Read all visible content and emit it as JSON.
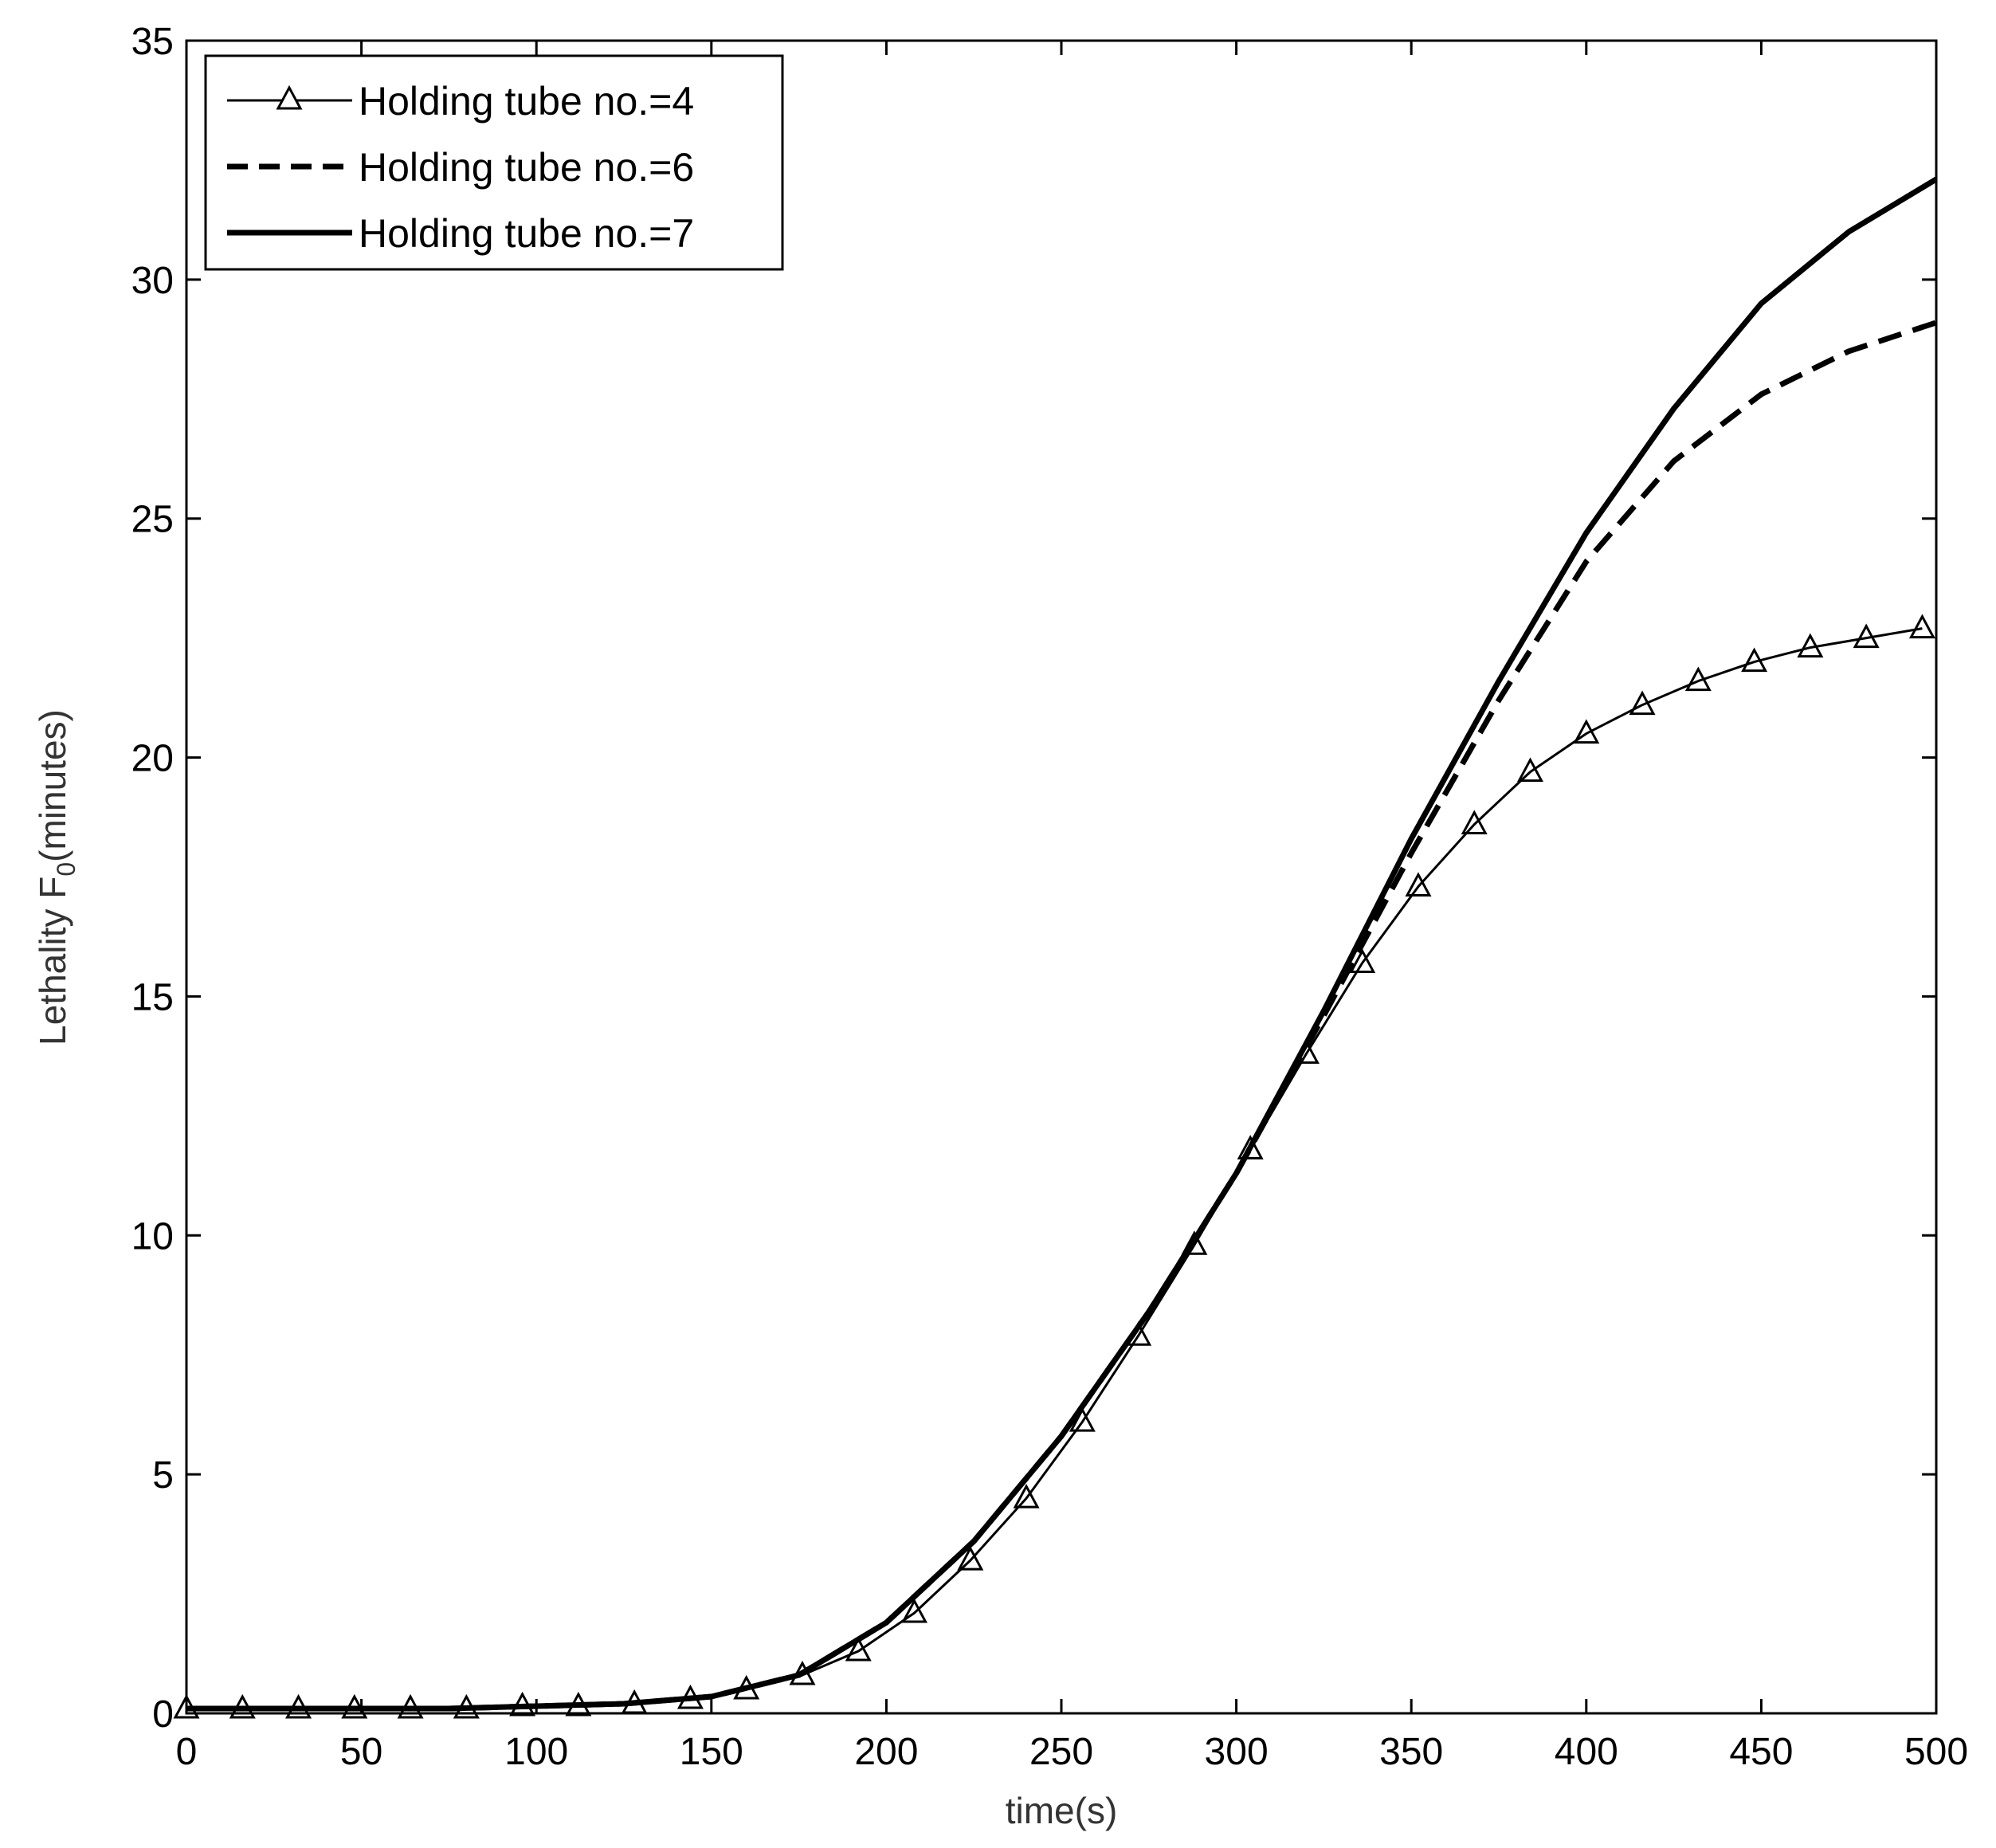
{
  "chart_data": {
    "type": "line",
    "title": "",
    "xlabel": "time(s)",
    "ylabel": {
      "main": "Lethality F",
      "subscript": "0",
      "suffix": "(minutes)"
    },
    "xlim": [
      0,
      500
    ],
    "ylim": [
      0,
      35
    ],
    "xticks": [
      0,
      50,
      100,
      150,
      200,
      250,
      300,
      350,
      400,
      450,
      500
    ],
    "yticks": [
      0,
      5,
      10,
      15,
      20,
      25,
      30,
      35
    ],
    "grid": false,
    "legend_position": "top-left",
    "series": [
      {
        "name": "Holding tube no.=4",
        "style": "solid-thin-triangle",
        "color": "#000000",
        "x": [
          0,
          16,
          32,
          48,
          64,
          80,
          96,
          112,
          128,
          144,
          160,
          176,
          192,
          208,
          224,
          240,
          256,
          272,
          288,
          304,
          320,
          336,
          352,
          368,
          384,
          400,
          416,
          432,
          448,
          464,
          480,
          496
        ],
        "y": [
          0.1,
          0.1,
          0.1,
          0.1,
          0.1,
          0.1,
          0.15,
          0.15,
          0.2,
          0.3,
          0.5,
          0.8,
          1.3,
          2.1,
          3.2,
          4.5,
          6.1,
          7.9,
          9.8,
          11.8,
          13.8,
          15.7,
          17.3,
          18.6,
          19.7,
          20.5,
          21.1,
          21.6,
          22.0,
          22.3,
          22.5,
          22.7
        ]
      },
      {
        "name": "Holding tube no.=6",
        "style": "dashed",
        "color": "#000000",
        "x": [
          0,
          25,
          50,
          75,
          100,
          125,
          150,
          175,
          200,
          225,
          250,
          275,
          300,
          325,
          350,
          375,
          400,
          425,
          450,
          475,
          500
        ],
        "y": [
          0.1,
          0.1,
          0.1,
          0.1,
          0.15,
          0.2,
          0.35,
          0.8,
          1.9,
          3.6,
          5.8,
          8.4,
          11.3,
          14.6,
          18.0,
          21.2,
          24.1,
          26.2,
          27.6,
          28.5,
          29.1
        ]
      },
      {
        "name": "Holding tube no.=7",
        "style": "solid-thick",
        "color": "#000000",
        "x": [
          0,
          25,
          50,
          75,
          100,
          125,
          150,
          175,
          200,
          225,
          250,
          275,
          300,
          325,
          350,
          375,
          400,
          425,
          450,
          475,
          500
        ],
        "y": [
          0.1,
          0.1,
          0.1,
          0.1,
          0.15,
          0.2,
          0.35,
          0.8,
          1.9,
          3.6,
          5.8,
          8.4,
          11.3,
          14.7,
          18.3,
          21.6,
          24.7,
          27.3,
          29.5,
          31.0,
          32.1
        ]
      }
    ]
  }
}
